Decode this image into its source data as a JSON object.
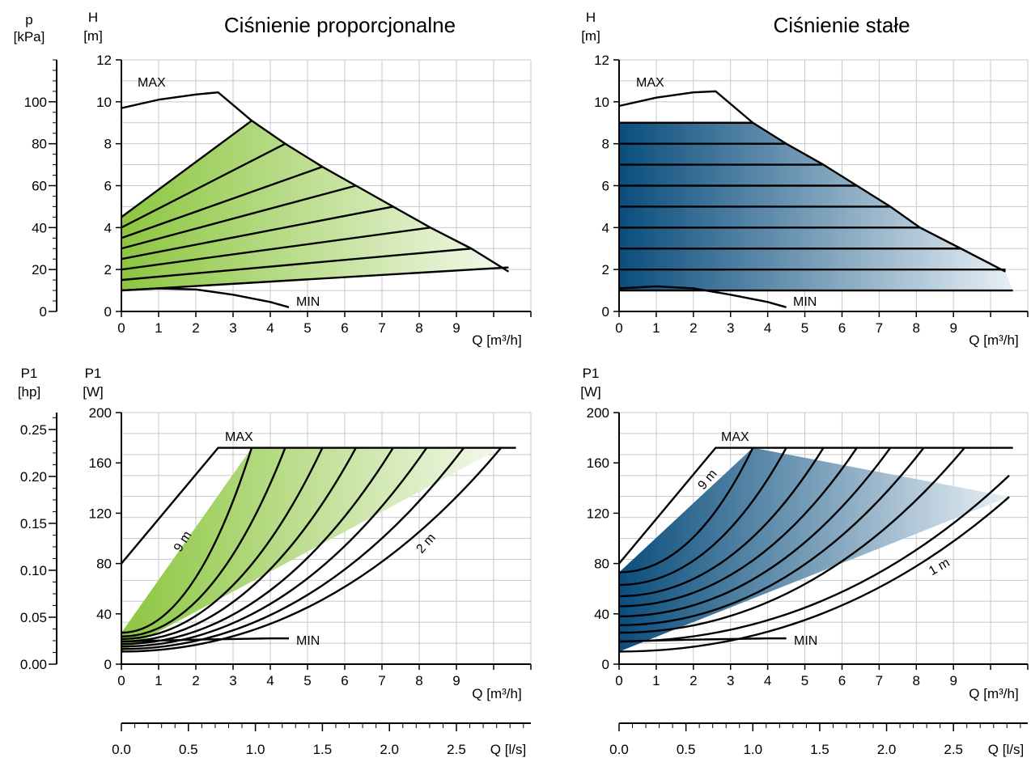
{
  "titles": {
    "proportional": "Ciśnienie proporcjonalne",
    "constant": "Ciśnienie stałe"
  },
  "units": {
    "p_symbol": "p",
    "p_unit": "[kPa]",
    "h_symbol": "H",
    "h_unit": "[m]",
    "p1_symbol": "P1",
    "hp_unit": "[hp]",
    "w_unit": "[W]",
    "q_m3h": "Q [m³/h]",
    "q_ls": "Q [l/s]"
  },
  "curve_labels": {
    "max": "MAX",
    "min": "MIN",
    "nine_m": "9 m",
    "two_m": "2 m",
    "one_m": "1 m"
  },
  "colors": {
    "proportional_gradient": [
      "#8cc63f",
      "#f4f9ec"
    ],
    "constant_gradient": [
      "#0a4d7c",
      "#e8f0f6"
    ],
    "grid": "#c8c8c8",
    "curve": "#000000"
  },
  "chart_data": [
    {
      "id": "head-proportional",
      "type": "line",
      "title": "Ciśnienie proporcjonalne",
      "xlabel": "Q [m³/h]",
      "ylabel": "H [m]",
      "secondary_ylabel": "p [kPa]",
      "xlim": [
        0,
        11
      ],
      "ylim": [
        0,
        12
      ],
      "secondary_ylim": [
        0,
        120
      ],
      "x_ticks": [
        "0",
        "1",
        "2",
        "3",
        "4",
        "5",
        "6",
        "7",
        "8",
        "9"
      ],
      "y_ticks": [
        "0",
        "2",
        "4",
        "6",
        "8",
        "10",
        "12"
      ],
      "secondary_y_ticks": [
        "0",
        "20",
        "40",
        "60",
        "80",
        "100"
      ],
      "grid": true,
      "series": [
        {
          "name": "MAX",
          "x": [
            0,
            1,
            2,
            2.6,
            3.5,
            4.4,
            5.4,
            6.3,
            7.3,
            8.3,
            9.4,
            10.4
          ],
          "y": [
            9.7,
            10.1,
            10.35,
            10.45,
            9.1,
            8.0,
            6.9,
            6.0,
            5.0,
            4.0,
            3.0,
            1.9
          ]
        },
        {
          "name": "MIN",
          "x": [
            0,
            1,
            2,
            3,
            4,
            4.5
          ],
          "y": [
            1.0,
            1.1,
            1.05,
            0.8,
            0.45,
            0.2
          ]
        },
        {
          "x": [
            0,
            3.5
          ],
          "y": [
            4.5,
            9.1
          ]
        },
        {
          "x": [
            0,
            4.4
          ],
          "y": [
            4.0,
            8.0
          ]
        },
        {
          "x": [
            0,
            5.4
          ],
          "y": [
            3.5,
            6.9
          ]
        },
        {
          "x": [
            0,
            6.3
          ],
          "y": [
            3.0,
            6.0
          ]
        },
        {
          "x": [
            0,
            7.3
          ],
          "y": [
            2.5,
            5.0
          ]
        },
        {
          "x": [
            0,
            8.3
          ],
          "y": [
            2.0,
            4.0
          ]
        },
        {
          "x": [
            0,
            9.4
          ],
          "y": [
            1.5,
            3.0
          ]
        },
        {
          "x": [
            0,
            10.4
          ],
          "y": [
            1.0,
            2.1
          ]
        }
      ]
    },
    {
      "id": "head-constant",
      "type": "line",
      "title": "Ciśnienie stałe",
      "xlabel": "Q [m³/h]",
      "ylabel": "H [m]",
      "xlim": [
        0,
        11
      ],
      "ylim": [
        0,
        12
      ],
      "x_ticks": [
        "0",
        "1",
        "2",
        "3",
        "4",
        "5",
        "6",
        "7",
        "8",
        "9"
      ],
      "y_ticks": [
        "0",
        "2",
        "4",
        "6",
        "8",
        "10",
        "12"
      ],
      "grid": true,
      "series": [
        {
          "name": "MAX",
          "x": [
            0,
            1,
            2,
            2.6,
            3.6,
            4.5,
            5.5,
            6.4,
            7.3,
            8.1,
            9.2,
            10.4
          ],
          "y": [
            9.8,
            10.2,
            10.45,
            10.5,
            9.0,
            8.0,
            7.0,
            6.0,
            5.0,
            4.0,
            3.0,
            1.9
          ]
        },
        {
          "name": "MIN",
          "x": [
            0,
            1,
            2,
            3,
            4,
            4.5
          ],
          "y": [
            1.1,
            1.2,
            1.1,
            0.8,
            0.45,
            0.2
          ]
        },
        {
          "x": [
            0,
            3.6
          ],
          "y": [
            9,
            9
          ]
        },
        {
          "x": [
            0,
            4.5
          ],
          "y": [
            8,
            8
          ]
        },
        {
          "x": [
            0,
            5.5
          ],
          "y": [
            7,
            7
          ]
        },
        {
          "x": [
            0,
            6.4
          ],
          "y": [
            6,
            6
          ]
        },
        {
          "x": [
            0,
            7.3
          ],
          "y": [
            5,
            5
          ]
        },
        {
          "x": [
            0,
            8.1
          ],
          "y": [
            4,
            4
          ]
        },
        {
          "x": [
            0,
            9.2
          ],
          "y": [
            3,
            3
          ]
        },
        {
          "x": [
            0,
            10.4
          ],
          "y": [
            2,
            2
          ]
        },
        {
          "x": [
            0,
            10.6
          ],
          "y": [
            1,
            1
          ]
        }
      ]
    },
    {
      "id": "power-proportional",
      "type": "line",
      "xlabel": "Q [m³/h]",
      "ylabel": "P1 [W]",
      "secondary_ylabel": "P1 [hp]",
      "secondary_xlabel": "Q [l/s]",
      "xlim": [
        0,
        11
      ],
      "ylim": [
        0,
        200
      ],
      "secondary_ylim": [
        0,
        0.268
      ],
      "x_ticks": [
        "0",
        "1",
        "2",
        "3",
        "4",
        "5",
        "6",
        "7",
        "8",
        "9"
      ],
      "secondary_x_ticks": [
        "0.0",
        "0.5",
        "1.0",
        "1.5",
        "2.0",
        "2.5"
      ],
      "y_ticks": [
        "0",
        "40",
        "80",
        "120",
        "160",
        "200"
      ],
      "secondary_y_ticks": [
        "0.00",
        "0.05",
        "0.10",
        "0.15",
        "0.20",
        "0.25"
      ],
      "grid": true,
      "series": [
        {
          "name": "MAX",
          "x": [
            0,
            2.6,
            10.6
          ],
          "y": [
            80,
            172,
            172
          ]
        },
        {
          "name": "MIN",
          "x": [
            0,
            1,
            2,
            3,
            4,
            4.5
          ],
          "y": [
            18,
            18.8,
            19.5,
            20,
            20.5,
            20.5
          ]
        },
        {
          "x": [
            0,
            3.5
          ],
          "y": [
            25,
            172
          ]
        },
        {
          "x": [
            0,
            4.4
          ],
          "y": [
            22,
            172
          ]
        },
        {
          "x": [
            0,
            5.4
          ],
          "y": [
            20,
            172
          ]
        },
        {
          "x": [
            0,
            6.3
          ],
          "y": [
            18,
            172
          ]
        },
        {
          "x": [
            0,
            7.3
          ],
          "y": [
            16,
            172
          ]
        },
        {
          "x": [
            0,
            8.2
          ],
          "y": [
            14,
            172
          ]
        },
        {
          "x": [
            0,
            9.2
          ],
          "y": [
            12,
            172
          ]
        },
        {
          "x": [
            0,
            10.2
          ],
          "y": [
            10,
            172
          ]
        }
      ]
    },
    {
      "id": "power-constant",
      "type": "line",
      "xlabel": "Q [m³/h]",
      "ylabel": "P1 [W]",
      "secondary_xlabel": "Q [l/s]",
      "xlim": [
        0,
        11
      ],
      "ylim": [
        0,
        200
      ],
      "x_ticks": [
        "0",
        "1",
        "2",
        "3",
        "4",
        "5",
        "6",
        "7",
        "8",
        "9"
      ],
      "secondary_x_ticks": [
        "0.0",
        "0.5",
        "1.0",
        "1.5",
        "2.0",
        "2.5"
      ],
      "y_ticks": [
        "0",
        "40",
        "80",
        "120",
        "160",
        "200"
      ],
      "grid": true,
      "series": [
        {
          "name": "MAX",
          "x": [
            0,
            2.6,
            10.6
          ],
          "y": [
            80,
            172,
            172
          ]
        },
        {
          "name": "MIN",
          "x": [
            0,
            1,
            2,
            3,
            4,
            4.5
          ],
          "y": [
            18,
            18.8,
            19.5,
            20,
            20.5,
            20.5
          ]
        },
        {
          "x": [
            0,
            3.6
          ],
          "y": [
            73,
            172
          ]
        },
        {
          "x": [
            0,
            4.5
          ],
          "y": [
            63,
            172
          ]
        },
        {
          "x": [
            0,
            5.5
          ],
          "y": [
            54,
            172
          ]
        },
        {
          "x": [
            0,
            6.4
          ],
          "y": [
            46,
            172
          ]
        },
        {
          "x": [
            0,
            7.3
          ],
          "y": [
            38,
            172
          ]
        },
        {
          "x": [
            0,
            8.2
          ],
          "y": [
            31,
            172
          ]
        },
        {
          "x": [
            0,
            9.3
          ],
          "y": [
            25,
            172
          ]
        },
        {
          "x": [
            0,
            10.5
          ],
          "y": [
            18,
            150
          ]
        },
        {
          "x": [
            0,
            10.5
          ],
          "y": [
            10,
            133
          ]
        }
      ]
    }
  ]
}
